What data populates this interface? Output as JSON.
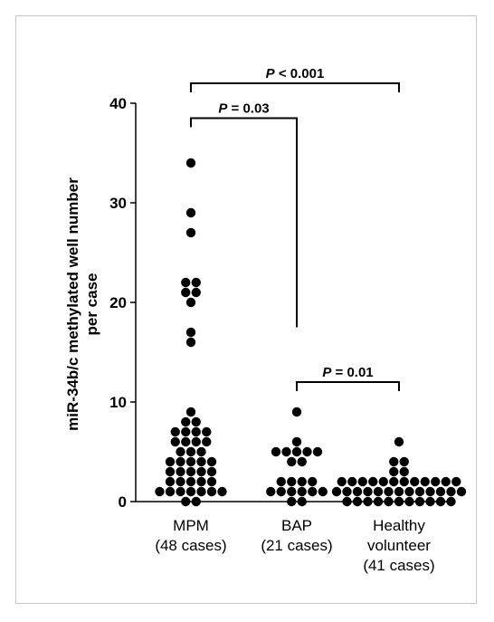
{
  "chart_data": {
    "type": "scatter",
    "subtype": "dot-plot",
    "ylabel_lines": [
      "miR-34b/c methylated well number",
      "per case"
    ],
    "ylim": [
      0,
      40
    ],
    "yticks": [
      "0",
      "10",
      "20",
      "30",
      "40"
    ],
    "grid": false,
    "legend": "none",
    "marker_color": "#000000",
    "groups": [
      {
        "label_lines": [
          "MPM",
          "(48 cases)"
        ],
        "values": [
          34,
          29,
          27,
          22,
          22,
          21,
          21,
          20,
          17,
          16,
          9,
          8,
          8,
          7,
          7,
          7,
          7,
          6,
          6,
          6,
          6,
          5,
          5,
          5,
          4,
          4,
          4,
          4,
          4,
          3,
          3,
          3,
          3,
          3,
          2,
          2,
          2,
          2,
          2,
          1,
          1,
          1,
          1,
          1,
          1,
          1,
          0,
          0
        ]
      },
      {
        "label_lines": [
          "BAP",
          "(21 cases)"
        ],
        "values": [
          9,
          6,
          5,
          5,
          5,
          5,
          5,
          4,
          4,
          2,
          2,
          2,
          2,
          1,
          1,
          1,
          1,
          1,
          1,
          0,
          0
        ]
      },
      {
        "label_lines": [
          "Healthy",
          "volunteer",
          "(41 cases)"
        ],
        "values": [
          6,
          4,
          4,
          3,
          3,
          2,
          2,
          2,
          2,
          2,
          2,
          2,
          2,
          2,
          2,
          2,
          2,
          1,
          1,
          1,
          1,
          1,
          1,
          1,
          1,
          1,
          1,
          1,
          1,
          1,
          0,
          0,
          0,
          0,
          0,
          0,
          0,
          0,
          0,
          0,
          0
        ]
      }
    ],
    "comparisons": [
      {
        "from": 0,
        "to": 2,
        "bracket_y": 42,
        "p_symbol": "P",
        "p_text": "< 0.001"
      },
      {
        "from": 0,
        "to": 1,
        "bracket_y": 38.5,
        "p_symbol": "P",
        "p_text": "= 0.03",
        "right_leg_to": 17.5
      },
      {
        "from": 1,
        "to": 2,
        "bracket_y": 12,
        "p_symbol": "P",
        "p_text": "= 0.01"
      }
    ]
  }
}
